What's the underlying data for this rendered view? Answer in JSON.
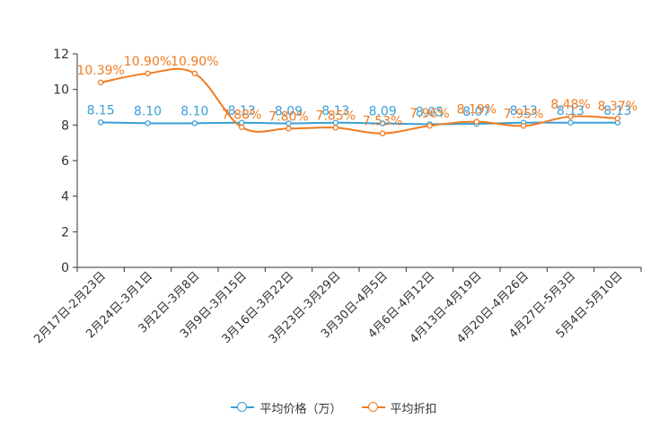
{
  "chart_data": {
    "type": "line",
    "categories": [
      "2月17日-2月23日",
      "2月24日-3月1日",
      "3月2日-3月8日",
      "3月9日-3月15日",
      "3月16日-3月22日",
      "3月23日-3月29日",
      "3月30日-4月5日",
      "4月6日-4月12日",
      "4月13日-4月19日",
      "4月20日-4月26日",
      "4月27日-5月3日",
      "5月4日-5月10日"
    ],
    "ylim": [
      0,
      12
    ],
    "yticks": [
      0,
      2,
      4,
      6,
      8,
      10,
      12
    ],
    "series": [
      {
        "name": "平均价格（万）",
        "color": "#3a9fd6",
        "values": [
          8.15,
          8.1,
          8.1,
          8.13,
          8.09,
          8.13,
          8.09,
          8.05,
          8.07,
          8.13,
          8.13,
          8.13
        ],
        "labels": [
          "8.15",
          "8.10",
          "8.10",
          "8.13",
          "8.09",
          "8.13",
          "8.09",
          "8.05",
          "8.07",
          "8.13",
          "8.13",
          "8.13"
        ]
      },
      {
        "name": "平均折扣",
        "color": "#f07b1f",
        "values": [
          10.39,
          10.9,
          10.9,
          7.88,
          7.8,
          7.85,
          7.53,
          7.96,
          8.19,
          7.95,
          8.48,
          8.37
        ],
        "labels": [
          "10.39%",
          "10.90%",
          "10.90%",
          "7.88%",
          "7.80%",
          "7.85%",
          "7.53%",
          "7.96%",
          "8.19%",
          "7.95%",
          "8.48%",
          "8.37%"
        ]
      }
    ]
  }
}
